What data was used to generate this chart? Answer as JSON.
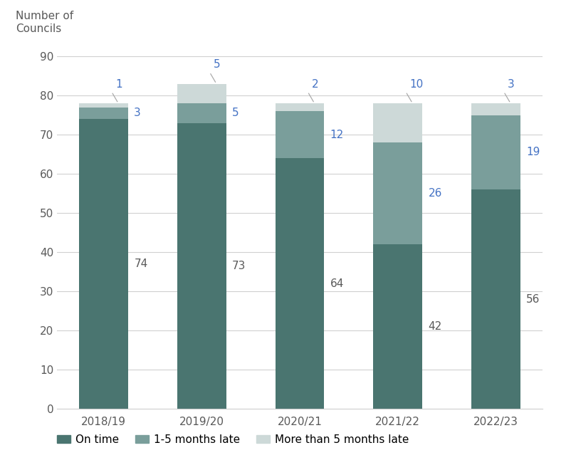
{
  "categories": [
    "2018/19",
    "2019/20",
    "2020/21",
    "2021/22",
    "2022/23"
  ],
  "on_time": [
    74,
    73,
    64,
    42,
    56
  ],
  "late_1_5": [
    3,
    5,
    12,
    26,
    19
  ],
  "late_5plus": [
    1,
    5,
    2,
    10,
    3
  ],
  "color_on_time": "#4a7570",
  "color_late_1_5": "#7a9e9b",
  "color_late_5plus": "#cdd9d8",
  "ylim": [
    0,
    90
  ],
  "yticks": [
    0,
    10,
    20,
    30,
    40,
    50,
    60,
    70,
    80,
    90
  ],
  "legend_labels": [
    "On time",
    "1-5 months late",
    "More than 5 months late"
  ],
  "background_color": "#ffffff",
  "annotation_color_blue": "#4472c4",
  "annotation_color_dark": "#595959",
  "bar_width": 0.5
}
